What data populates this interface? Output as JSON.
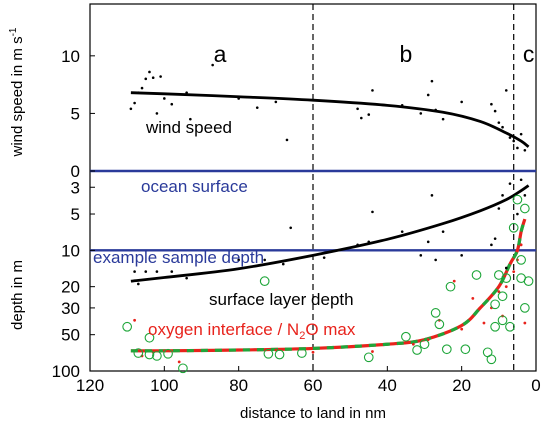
{
  "chart_data": {
    "type": "scatter",
    "xlabel": "distance to land in nm",
    "x_ticks": [
      120,
      100,
      80,
      60,
      40,
      20,
      0
    ],
    "xlim": [
      120,
      0
    ],
    "regions": [
      {
        "label": "a",
        "x": 85
      },
      {
        "label": "b",
        "x": 35
      },
      {
        "label": "c",
        "x": 2
      }
    ],
    "region_boundaries": [
      60,
      6
    ],
    "colors": {
      "black": "#000000",
      "blue": "#2a3a9a",
      "red": "#e8231c",
      "green": "#1fa63a"
    },
    "wind_panel": {
      "ylabel": "wind speed in m s",
      "ylabel_superscript": "-1",
      "y_ticks": [
        0,
        5,
        10
      ],
      "ylim": [
        0,
        14.5
      ],
      "surface_label": "ocean surface",
      "fit_label": "wind speed",
      "fit": [
        [
          109,
          6.8
        ],
        [
          100,
          6.7
        ],
        [
          80,
          6.45
        ],
        [
          60,
          6.15
        ],
        [
          40,
          5.7
        ],
        [
          25,
          5.1
        ],
        [
          15,
          4.3
        ],
        [
          8,
          3.3
        ],
        [
          4,
          2.6
        ],
        [
          2,
          2.1
        ]
      ],
      "points": [
        [
          109,
          5.4
        ],
        [
          108,
          5.9
        ],
        [
          107,
          6.8
        ],
        [
          106,
          7.2
        ],
        [
          105,
          8.0
        ],
        [
          104,
          8.6
        ],
        [
          103,
          8.1
        ],
        [
          102,
          5.0
        ],
        [
          101,
          8.2
        ],
        [
          100,
          6.3
        ],
        [
          98,
          5.8
        ],
        [
          94,
          6.8
        ],
        [
          93,
          4.5
        ],
        [
          87,
          9.2
        ],
        [
          80,
          6.3
        ],
        [
          75,
          5.5
        ],
        [
          70,
          6.0
        ],
        [
          67,
          2.7
        ],
        [
          48,
          5.4
        ],
        [
          47,
          4.6
        ],
        [
          45,
          4.9
        ],
        [
          44,
          7.0
        ],
        [
          36,
          5.7
        ],
        [
          31,
          5.0
        ],
        [
          29,
          6.6
        ],
        [
          28,
          7.8
        ],
        [
          27,
          5.3
        ],
        [
          25,
          4.5
        ],
        [
          20,
          6.0
        ],
        [
          12,
          5.8
        ],
        [
          11,
          5.2
        ],
        [
          10,
          4.2
        ],
        [
          9,
          3.8
        ],
        [
          8,
          7.0
        ],
        [
          7,
          2.9
        ],
        [
          6,
          2.6
        ],
        [
          5,
          2.0
        ],
        [
          4,
          3.2
        ],
        [
          3,
          1.8
        ]
      ]
    },
    "depth_panel": {
      "ylabel": "depth in m",
      "y_ticks": [
        3,
        5,
        10,
        20,
        30,
        50,
        100
      ],
      "ylim": [
        2.2,
        100
      ],
      "yscale": "log",
      "example_depth": 10,
      "example_label": "example sample depth",
      "surface_fit_label": "surface layer depth",
      "interface_label": "oxygen interface / N",
      "interface_sub": "2",
      "interface_label_end": "O max",
      "surface_fit": [
        [
          109,
          18
        ],
        [
          100,
          16.8
        ],
        [
          80,
          14.2
        ],
        [
          60,
          11.0
        ],
        [
          40,
          8.1
        ],
        [
          25,
          6.0
        ],
        [
          15,
          4.7
        ],
        [
          8,
          3.8
        ],
        [
          4,
          3.2
        ],
        [
          2,
          2.9
        ]
      ],
      "interface_fit": [
        [
          109,
          68
        ],
        [
          100,
          68
        ],
        [
          80,
          67
        ],
        [
          60,
          65
        ],
        [
          40,
          60
        ],
        [
          30,
          55
        ],
        [
          20,
          42
        ],
        [
          15,
          30
        ],
        [
          10,
          20
        ],
        [
          7,
          13
        ],
        [
          5,
          10
        ],
        [
          4,
          7
        ],
        [
          3,
          5.5
        ]
      ],
      "surface_points": [
        [
          108,
          15
        ],
        [
          107,
          19
        ],
        [
          105,
          15
        ],
        [
          102,
          15
        ],
        [
          98,
          15
        ],
        [
          94,
          17
        ],
        [
          80,
          12
        ],
        [
          73,
          12
        ],
        [
          68,
          13
        ],
        [
          66,
          6.5
        ],
        [
          57,
          11.5
        ],
        [
          48,
          9
        ],
        [
          45,
          8.5
        ],
        [
          44,
          4.8
        ],
        [
          36,
          7
        ],
        [
          31,
          11
        ],
        [
          29,
          8.5
        ],
        [
          28,
          3.5
        ],
        [
          27,
          12
        ],
        [
          25,
          7
        ],
        [
          20,
          11
        ],
        [
          12,
          9
        ],
        [
          11,
          8
        ],
        [
          10,
          4.5
        ],
        [
          9,
          3.5
        ],
        [
          8,
          14
        ],
        [
          7,
          2.8
        ],
        [
          5,
          5
        ],
        [
          4,
          2.6
        ],
        [
          3,
          3.5
        ]
      ],
      "oxygen_points": [
        [
          110,
          43
        ],
        [
          107,
          71
        ],
        [
          104,
          73
        ],
        [
          104,
          53
        ],
        [
          102,
          75
        ],
        [
          99,
          72
        ],
        [
          95,
          95
        ],
        [
          73,
          18
        ],
        [
          72,
          72
        ],
        [
          69,
          73
        ],
        [
          63,
          71
        ],
        [
          45,
          77
        ],
        [
          35,
          52
        ],
        [
          32,
          67
        ],
        [
          30,
          60
        ],
        [
          27,
          33
        ],
        [
          26,
          41
        ],
        [
          24,
          66
        ],
        [
          23,
          20
        ],
        [
          19,
          66
        ],
        [
          16,
          16
        ],
        [
          13,
          70
        ],
        [
          12,
          80
        ],
        [
          11,
          43
        ],
        [
          11,
          28
        ],
        [
          10,
          16
        ],
        [
          9,
          38
        ],
        [
          9,
          24
        ],
        [
          8,
          17
        ],
        [
          7,
          43
        ],
        [
          6,
          6.5
        ],
        [
          5,
          3.8
        ],
        [
          4,
          17
        ],
        [
          3,
          4.5
        ],
        [
          3,
          30
        ],
        [
          2,
          18
        ],
        [
          4,
          12
        ]
      ],
      "n2o_points": [
        [
          108,
          38
        ],
        [
          106,
          75
        ],
        [
          103,
          70
        ],
        [
          100,
          68
        ],
        [
          96,
          84
        ],
        [
          70,
          67
        ],
        [
          60,
          70
        ],
        [
          44,
          69
        ],
        [
          33,
          60
        ],
        [
          29,
          55
        ],
        [
          26,
          38
        ],
        [
          22,
          18
        ],
        [
          20,
          45
        ],
        [
          17,
          25
        ],
        [
          14,
          40
        ],
        [
          12,
          30
        ],
        [
          10,
          22
        ],
        [
          9,
          35
        ],
        [
          8,
          20
        ],
        [
          6,
          15
        ],
        [
          5,
          12
        ],
        [
          4,
          9
        ],
        [
          3,
          40
        ]
      ]
    }
  }
}
